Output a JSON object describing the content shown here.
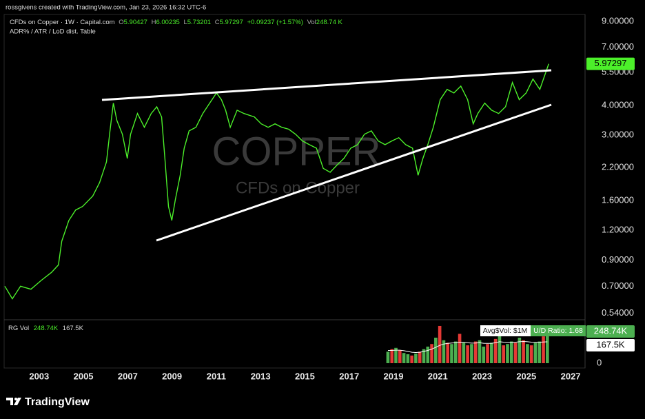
{
  "header": {
    "credit": "rossgivens created with TradingView.com, Jan 23, 2026 16:32 UTC-6",
    "symbol": "CFDs on Copper · 1W · Capital.com",
    "o_key": "O",
    "o_val": "5.90427",
    "h_key": "H",
    "h_val": "6.00235",
    "l_key": "L",
    "l_val": "5.73201",
    "c_key": "C",
    "c_val": "5.97297",
    "change": "+0.09237 (+1.57%)",
    "vol_key": "Vol",
    "vol_val": "248.74 K",
    "indicator": "ADR% / ATR / LoD dist. Table"
  },
  "watermark": {
    "ticker": "COPPER",
    "description": "CFDs on Copper"
  },
  "table": {
    "avg_vol": "Avg$Vol: $1M",
    "ud_ratio": "U/D Ratio: 1.68"
  },
  "footer": {
    "brand": "TradingView"
  },
  "chart_data": [
    {
      "type": "line",
      "log": true,
      "color": "#4cf02a",
      "x": [
        2001.45,
        2001.79,
        2002.16,
        2002.63,
        2003.09,
        2003.56,
        2003.87,
        2004.02,
        2004.34,
        2004.65,
        2004.96,
        2005.42,
        2005.73,
        2006.04,
        2006.2,
        2006.35,
        2006.51,
        2006.76,
        2006.98,
        2007.13,
        2007.44,
        2007.75,
        2008.06,
        2008.31,
        2008.53,
        2008.68,
        2008.84,
        2008.99,
        2009.15,
        2009.37,
        2009.55,
        2009.77,
        2010.08,
        2010.39,
        2010.7,
        2011.01,
        2011.23,
        2011.42,
        2011.63,
        2011.94,
        2012.25,
        2012.72,
        2013.03,
        2013.34,
        2013.65,
        2013.96,
        2014.27,
        2014.58,
        2014.89,
        2015.2,
        2015.52,
        2015.83,
        2016.14,
        2016.45,
        2016.76,
        2017.07,
        2017.38,
        2017.69,
        2018.0,
        2018.31,
        2018.62,
        2018.93,
        2019.24,
        2019.55,
        2019.86,
        2020.11,
        2020.33,
        2020.55,
        2020.8,
        2021.11,
        2021.42,
        2021.73,
        2022.04,
        2022.35,
        2022.6,
        2022.81,
        2023.12,
        2023.43,
        2023.75,
        2024.06,
        2024.37,
        2024.68,
        2024.99,
        2025.3,
        2025.61,
        2026.01
      ],
      "values": [
        0.7,
        0.62,
        0.7,
        0.68,
        0.74,
        0.8,
        0.86,
        1.08,
        1.32,
        1.46,
        1.51,
        1.67,
        1.9,
        2.32,
        3.13,
        4.09,
        3.46,
        3.03,
        2.4,
        3.03,
        3.7,
        3.24,
        3.7,
        3.95,
        3.58,
        2.4,
        1.51,
        1.32,
        1.61,
        2.04,
        2.65,
        3.13,
        3.24,
        3.7,
        4.09,
        4.51,
        4.23,
        3.82,
        3.24,
        3.82,
        3.7,
        3.58,
        3.35,
        3.24,
        3.35,
        3.24,
        3.18,
        3.03,
        2.84,
        2.74,
        2.65,
        2.18,
        2.1,
        2.25,
        2.4,
        2.65,
        2.74,
        3.03,
        3.13,
        2.84,
        2.74,
        2.84,
        2.93,
        2.74,
        2.65,
        2.04,
        2.4,
        2.74,
        3.24,
        4.23,
        4.67,
        4.51,
        4.82,
        4.23,
        3.35,
        3.7,
        4.09,
        3.82,
        3.7,
        3.95,
        4.99,
        4.23,
        4.51,
        5.16,
        4.67,
        5.97297
      ],
      "xlim": [
        2001.45,
        2027.62
      ],
      "xticks": [
        2003,
        2005,
        2007,
        2009,
        2011,
        2013,
        2015,
        2017,
        2019,
        2021,
        2023,
        2025,
        2027
      ],
      "ylim": [
        0.51,
        9.55
      ],
      "yticks": [
        {
          "value": 9,
          "label": "9.00000"
        },
        {
          "value": 7,
          "label": "7.00000"
        },
        {
          "value": 5.5,
          "label": "5.50000"
        },
        {
          "value": 4,
          "label": "4.00000"
        },
        {
          "value": 3,
          "label": "3.00000"
        },
        {
          "value": 2.2,
          "label": "2.20000"
        },
        {
          "value": 1.6,
          "label": "1.60000"
        },
        {
          "value": 1.2,
          "label": "1.20000"
        },
        {
          "value": 0.9,
          "label": "0.90000"
        },
        {
          "value": 0.7,
          "label": "0.70000"
        },
        {
          "value": 0.54,
          "label": "0.54000"
        }
      ]
    },
    {
      "type": "bar",
      "title": "RG Vol",
      "x": [
        2018.75,
        2018.93,
        2019.11,
        2019.29,
        2019.47,
        2019.65,
        2019.83,
        2020.01,
        2020.19,
        2020.37,
        2020.55,
        2020.73,
        2020.91,
        2021.09,
        2021.27,
        2021.45,
        2021.63,
        2021.81,
        2021.99,
        2022.17,
        2022.35,
        2022.53,
        2022.71,
        2022.89,
        2023.07,
        2023.25,
        2023.43,
        2023.61,
        2023.79,
        2023.97,
        2024.15,
        2024.33,
        2024.51,
        2024.69,
        2024.87,
        2025.05,
        2025.23,
        2025.41,
        2025.59,
        2025.77,
        2025.95
      ],
      "values": [
        90000,
        110000,
        120000,
        100000,
        80000,
        70000,
        60000,
        75000,
        90000,
        110000,
        130000,
        150000,
        200000,
        292000,
        180000,
        160000,
        150000,
        170000,
        230000,
        160000,
        140000,
        150000,
        170000,
        180000,
        130000,
        150000,
        160000,
        190000,
        250000,
        140000,
        150000,
        170000,
        160000,
        200000,
        180000,
        150000,
        140000,
        160000,
        170000,
        210000,
        248740
      ],
      "colors": [
        "#4caf50",
        "#e53935",
        "#4caf50",
        "#e53935",
        "#4caf50",
        "#4caf50",
        "#e53935",
        "#4caf50",
        "#e53935",
        "#4caf50",
        "#4caf50",
        "#e53935",
        "#4caf50",
        "#e53935",
        "#4caf50",
        "#e53935",
        "#4caf50",
        "#4caf50",
        "#e53935",
        "#4caf50",
        "#e53935",
        "#4caf50",
        "#e53935",
        "#4caf50",
        "#4caf50",
        "#e53935",
        "#4caf50",
        "#e53935",
        "#4caf50",
        "#e53935",
        "#4caf50",
        "#4caf50",
        "#e53935",
        "#4caf50",
        "#e53935",
        "#4caf50",
        "#e53935",
        "#4caf50",
        "#4caf50",
        "#e53935",
        "#4caf50"
      ],
      "ma_values": [
        100000,
        100000,
        102000,
        102000,
        98000,
        92000,
        86000,
        84000,
        86000,
        92000,
        100000,
        110000,
        125000,
        140000,
        150000,
        155000,
        158000,
        160000,
        165000,
        164000,
        160000,
        157000,
        158000,
        160000,
        156000,
        155000,
        156000,
        160000,
        168000,
        165000,
        163000,
        164000,
        164000,
        168000,
        170000,
        168000,
        165000,
        164000,
        164000,
        166000,
        167500
      ],
      "current": 248740,
      "current_label": "248.74K",
      "ma_label": "167.5K",
      "ylim": [
        0,
        335000
      ],
      "yticks": [
        0
      ]
    }
  ]
}
